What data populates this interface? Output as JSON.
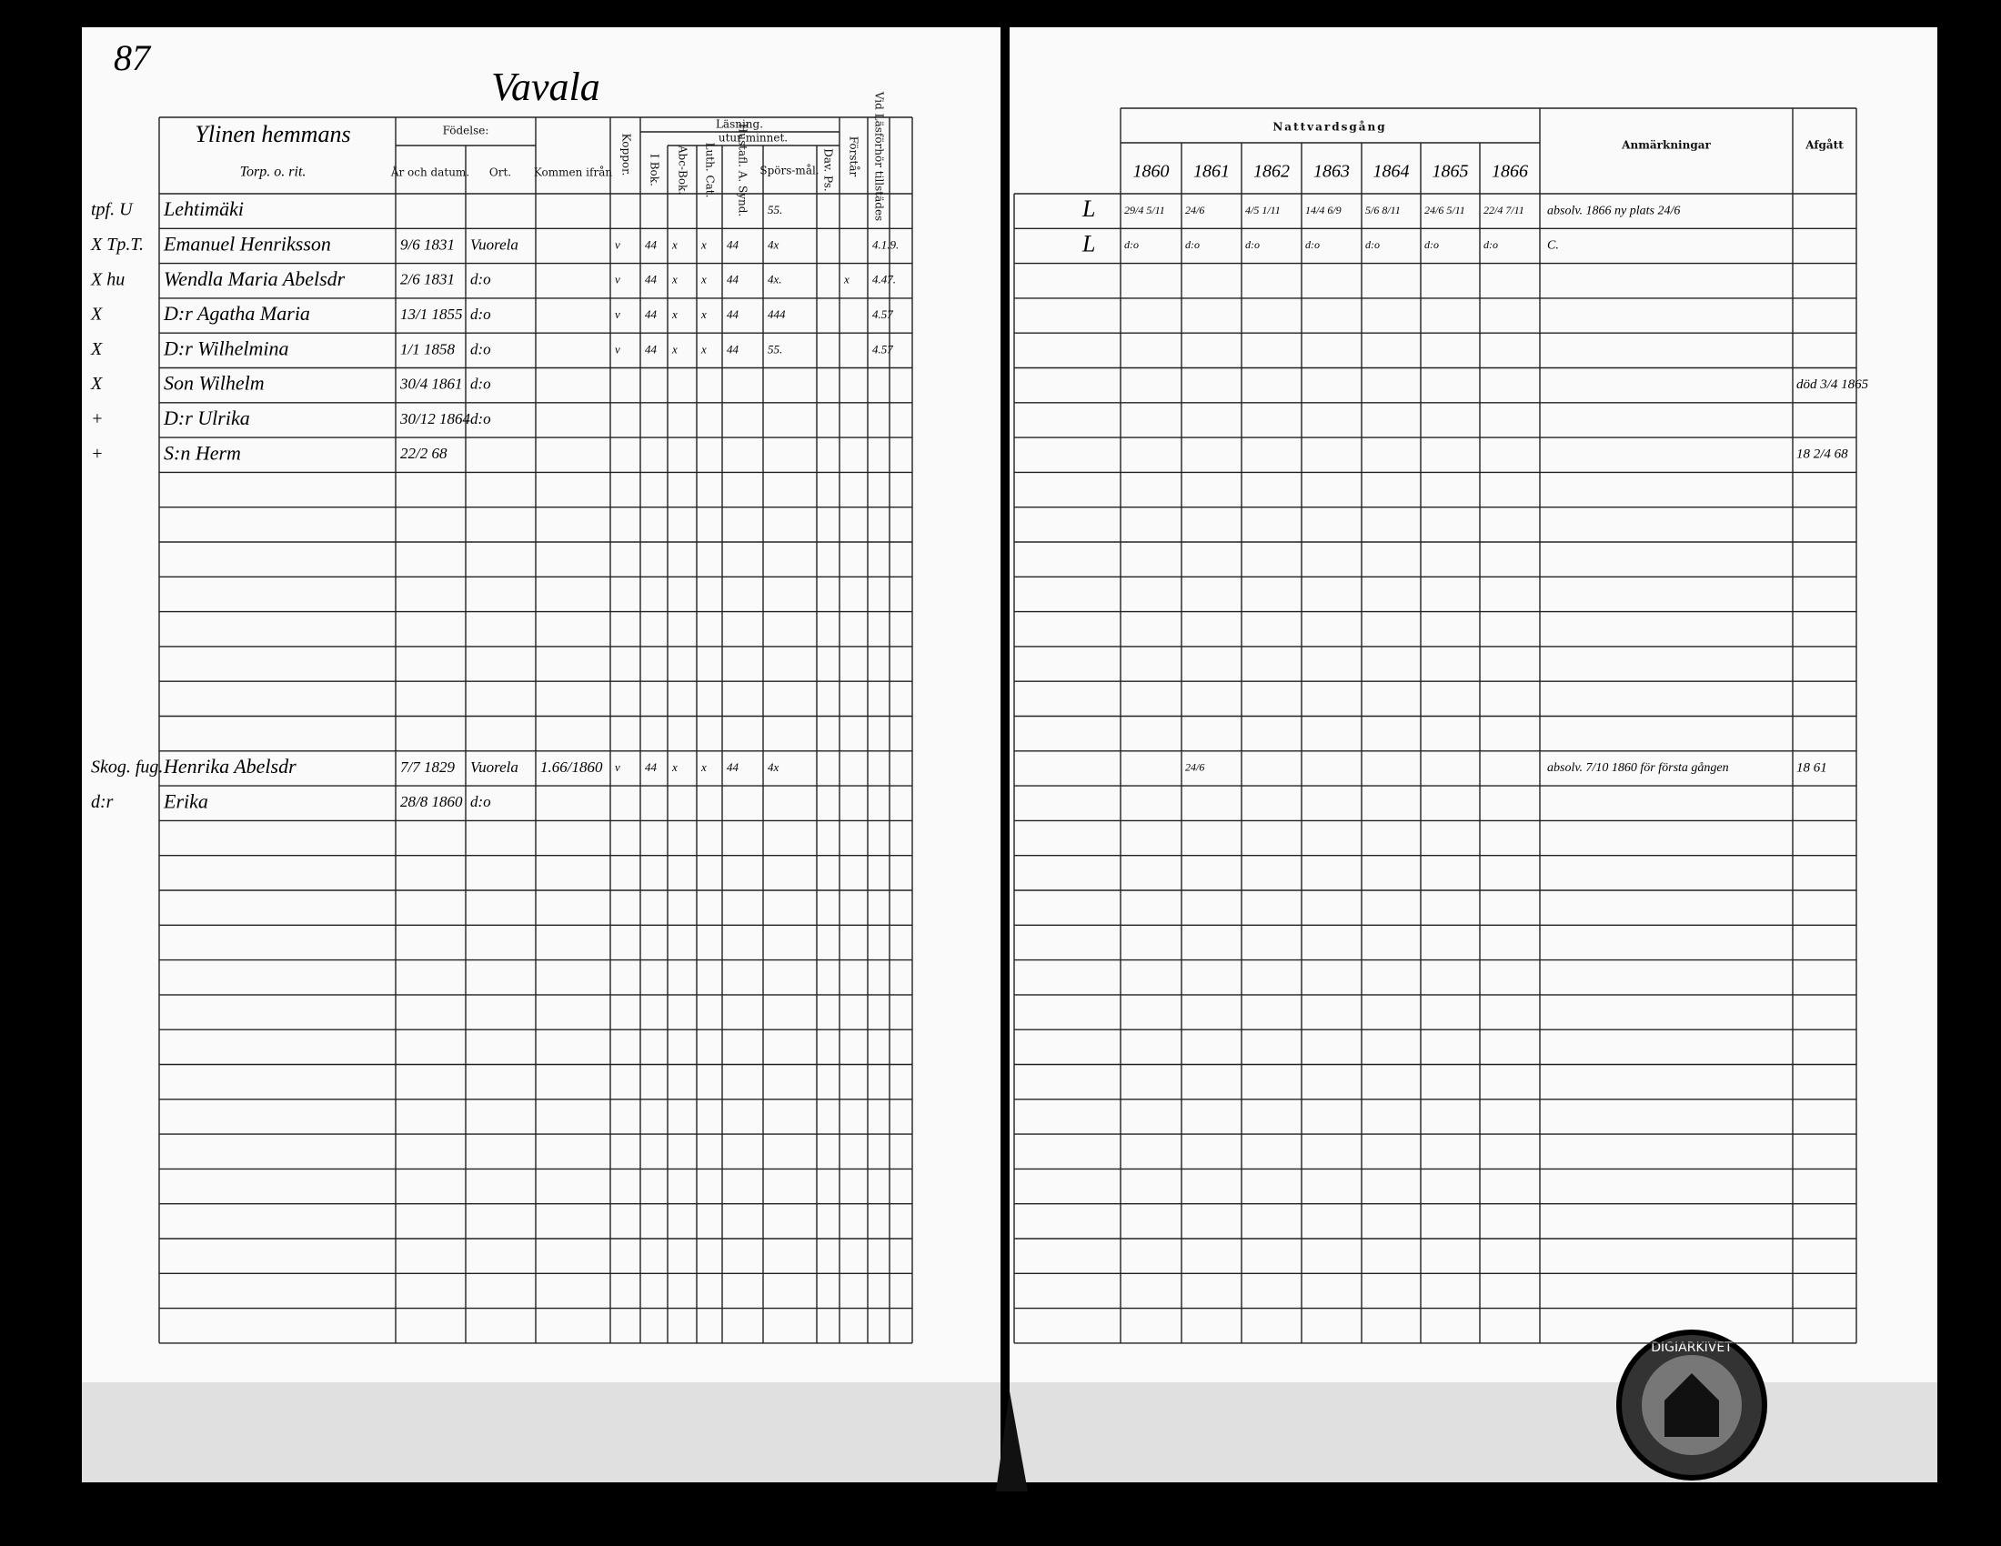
{
  "page_number": "87",
  "parish": "Vavala",
  "left_table": {
    "header": {
      "household": "Ylinen hemmans",
      "household_sub": "Torp. o. rit.",
      "birth": "Födelse:",
      "year_date": "År och datum.",
      "place": "Ort.",
      "came_from": "Kommen ifrån",
      "vaccine": "Koppor.",
      "reading": "Läsning.",
      "without": "utur minnet.",
      "book": "I Bok.",
      "abc": "Abc-Bok.",
      "catechism": "Luth. Cat.",
      "synod": "Hustafl. A. Synd.",
      "questions": "Spörs-mål.",
      "psalms": "Dav. Ps.",
      "understanding": "Förstår",
      "present": "Vid Läsförhör tillstädes"
    },
    "rows": [
      {
        "margin": "tpf. U",
        "name": "Lehtimäki",
        "questions": "55."
      },
      {
        "margin": "X Tp.T.",
        "name": "Emanuel Henriksson",
        "born": "9/6 1831",
        "place": "Vuorela",
        "vaccine": "v",
        "book": "44",
        "abc": "x",
        "catechism": "x",
        "synod": "44",
        "questions": "4x",
        "present": "4.1.9."
      },
      {
        "margin": "X hu",
        "name": "Wendla Maria Abelsdr",
        "born": "2/6 1831",
        "place": "d:o",
        "vaccine": "v",
        "book": "44",
        "abc": "x",
        "catechism": "x",
        "synod": "44",
        "questions": "4x.",
        "understanding": "x",
        "present": "4.47."
      },
      {
        "margin": "X",
        "name": "D:r Agatha Maria",
        "born": "13/1 1855",
        "place": "d:o",
        "vaccine": "v",
        "book": "44",
        "abc": "x",
        "catechism": "x",
        "synod": "44",
        "questions": "444",
        "present": "4.57"
      },
      {
        "margin": "X",
        "name": "D:r Wilhelmina",
        "born": "1/1 1858",
        "place": "d:o",
        "vaccine": "v",
        "book": "44",
        "abc": "x",
        "catechism": "x",
        "synod": "44",
        "questions": "55.",
        "present": "4.57"
      },
      {
        "margin": "X",
        "name": "Son Wilhelm",
        "born": "30/4 1861",
        "place": "d:o"
      },
      {
        "margin": "+",
        "name": "D:r Ulrika",
        "born": "30/12 1864",
        "place": "d:o"
      },
      {
        "margin": "+",
        "name": "S:n Herm",
        "born": "22/2 68"
      },
      null,
      null,
      null,
      null,
      null,
      null,
      null,
      null,
      {
        "margin": "Skog. fug.",
        "name": "Henrika Abelsdr",
        "born": "7/7 1829",
        "place": "Vuorela",
        "came_from": "1.66/1860",
        "vaccine": "v",
        "book": "44",
        "abc": "x",
        "catechism": "x",
        "synod": "44",
        "questions": "4x"
      },
      {
        "margin": "d:r",
        "name": "Erika",
        "born": "28/8 1860",
        "place": "d:o"
      },
      null,
      null,
      null,
      null,
      null,
      null,
      null,
      null,
      null,
      null,
      null,
      null,
      null,
      null,
      null
    ]
  },
  "right_table": {
    "header": {
      "communion": "Nattvardsgång",
      "years": [
        "1860",
        "1861",
        "1862",
        "1863",
        "1864",
        "1865",
        "1866"
      ],
      "remarks": "Anmärkningar",
      "departed": "Afgått"
    },
    "rows": [
      {
        "mark": "L",
        "communion": [
          "29/4 5/11",
          "24/6",
          "4/5 1/11",
          "14/4 6/9",
          "5/6 8/11",
          "24/6 5/11",
          "22/4 7/11"
        ],
        "remark": "absolv. 1866 ny plats 24/6"
      },
      {
        "mark": "L",
        "communion": [
          "d:o",
          "d:o",
          "d:o",
          "d:o",
          "d:o",
          "d:o",
          "d:o"
        ],
        "remark": "C."
      },
      null,
      null,
      null,
      {
        "departed": "död 3/4 1865"
      },
      null,
      {
        "departed": "18 2/4 68"
      },
      null,
      null,
      null,
      null,
      null,
      null,
      null,
      null,
      {
        "communion": [
          null,
          "24/6",
          null,
          null,
          null,
          null,
          null
        ],
        "remark": "absolv. 7/10 1860 för första gången",
        "departed": "18 61"
      },
      null,
      null,
      null,
      null,
      null,
      null,
      null,
      null,
      null,
      null,
      null,
      null,
      null,
      null,
      null,
      null
    ]
  },
  "stamp": "DIGIARKIVET"
}
